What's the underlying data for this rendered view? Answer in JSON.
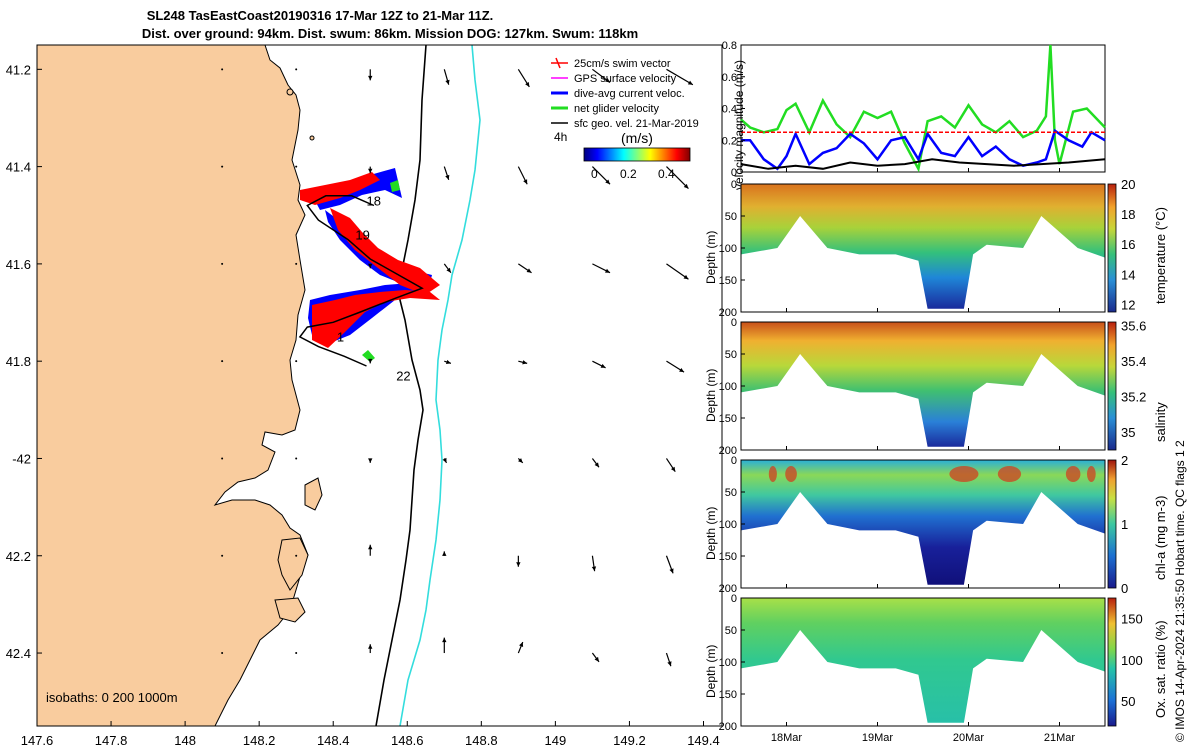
{
  "header": {
    "title_line1": "SL248 TasEastCoast20190316 17-Mar 12Z to 21-Mar 11Z.",
    "title_line2": "Dist. over ground: 94km. Dist. swum: 86km. Mission DOG: 127km. Swum: 118km"
  },
  "credit": "© IMOS 14-Apr-2024 21:35:50 Hobart time. QC flags 1 2",
  "colors": {
    "land": "#f9cc9e",
    "isobath_200": "#000000",
    "isobath_1000": "#33dddd",
    "swim": "#ff0000",
    "gps": "#ff00ff",
    "dive_avg": "#0000ff",
    "net": "#22dd22",
    "geo": "#000000"
  },
  "chart_data": [
    {
      "id": "map",
      "type": "map",
      "xlim": [
        147.6,
        149.45
      ],
      "ylim": [
        -42.55,
        -41.15
      ],
      "xticks": [
        147.6,
        147.8,
        148,
        148.2,
        148.4,
        148.6,
        148.8,
        149,
        149.2,
        149.4
      ],
      "xtick_labels": [
        "147.6",
        "147.8",
        "148",
        "148.2",
        "148.4",
        "148.6",
        "148.8",
        "149",
        "149.2",
        "149.4"
      ],
      "yticks": [
        -41.2,
        -41.4,
        -41.6,
        -41.8,
        -42,
        -42.2,
        -42.4
      ],
      "ytick_labels": [
        "41.2",
        "41.4",
        "41.6",
        "41.8",
        "-42",
        "42.2",
        "42.4"
      ],
      "legend": [
        "25cm/s swim vector",
        "GPS surface velocity",
        "dive-avg current veloc.",
        "net glider velocity",
        "sfc geo. vel. 21-Mar-2019"
      ],
      "legend_time": "4h",
      "colorbar": {
        "label": "(m/s)",
        "ticks": [
          "0",
          "0.2",
          "0.4"
        ],
        "range": [
          -0.05,
          0.5
        ]
      },
      "isobath_label": "isobaths: 0   200  1000m",
      "day_labels": [
        {
          "text": "18",
          "lon": 148.49,
          "lat": -41.48
        },
        {
          "text": "19",
          "lon": 148.46,
          "lat": -41.55
        },
        {
          "text": "1",
          "lon": 148.41,
          "lat": -41.76
        },
        {
          "text": "22",
          "lon": 148.57,
          "lat": -41.84
        }
      ],
      "track": [
        [
          148.51,
          -41.48
        ],
        [
          148.45,
          -41.46
        ],
        [
          148.38,
          -41.46
        ],
        [
          148.33,
          -41.48
        ],
        [
          148.36,
          -41.51
        ],
        [
          148.44,
          -41.55
        ],
        [
          148.5,
          -41.59
        ],
        [
          148.57,
          -41.62
        ],
        [
          148.64,
          -41.65
        ],
        [
          148.57,
          -41.67
        ],
        [
          148.47,
          -41.7
        ],
        [
          148.4,
          -41.72
        ],
        [
          148.33,
          -41.73
        ],
        [
          148.31,
          -41.75
        ],
        [
          148.36,
          -41.77
        ],
        [
          148.43,
          -41.79
        ],
        [
          148.49,
          -41.81
        ]
      ],
      "geo_vectors": {
        "lons": [
          148.1,
          148.3,
          148.5,
          148.7,
          148.9,
          149.1,
          149.3
        ],
        "lats": [
          -41.2,
          -41.4,
          -41.6,
          -41.8,
          -42.0,
          -42.2,
          -42.4
        ],
        "u": [
          [
            0.0,
            0.0,
            0.0,
            0.02,
            0.05,
            0.08,
            0.12
          ],
          [
            0.0,
            0.0,
            0.0,
            0.02,
            0.04,
            0.08,
            0.1
          ],
          [
            0.0,
            0.0,
            0.0,
            0.03,
            0.06,
            0.08,
            0.1
          ],
          [
            0.0,
            0.0,
            0.0,
            0.03,
            0.04,
            0.06,
            0.08
          ],
          [
            0.0,
            0.0,
            0.0,
            0.01,
            0.02,
            0.03,
            0.04
          ],
          [
            0.0,
            0.0,
            0.0,
            0.0,
            0.0,
            0.01,
            0.03
          ],
          [
            0.0,
            0.0,
            0.0,
            0.0,
            0.02,
            0.03,
            0.02
          ]
        ],
        "v": [
          [
            0.0,
            0.0,
            -0.05,
            -0.07,
            -0.08,
            -0.06,
            -0.07
          ],
          [
            0.0,
            0.0,
            -0.03,
            -0.06,
            -0.08,
            -0.08,
            -0.1
          ],
          [
            0.0,
            0.0,
            -0.02,
            -0.04,
            -0.04,
            -0.04,
            -0.07
          ],
          [
            0.0,
            0.0,
            -0.01,
            -0.01,
            -0.01,
            -0.03,
            -0.05
          ],
          [
            0.0,
            0.0,
            -0.02,
            -0.02,
            -0.02,
            -0.04,
            -0.06
          ],
          [
            0.0,
            0.0,
            0.05,
            0.02,
            -0.05,
            -0.07,
            -0.08
          ],
          [
            0.0,
            0.0,
            0.04,
            0.07,
            0.05,
            -0.04,
            -0.06
          ]
        ]
      }
    },
    {
      "id": "velocity",
      "type": "line",
      "ylabel": "velocity magnitude (m/s)",
      "ylim": [
        0,
        0.8
      ],
      "yticks": [
        0,
        0.2,
        0.4,
        0.6,
        0.8
      ],
      "xlim": [
        17.5,
        21.5
      ],
      "series": [
        {
          "name": "net glider velocity",
          "color": "#22dd22",
          "x": [
            17.5,
            17.6,
            17.75,
            17.9,
            18.0,
            18.1,
            18.25,
            18.4,
            18.55,
            18.7,
            18.85,
            19.0,
            19.15,
            19.3,
            19.45,
            19.55,
            19.7,
            19.85,
            20.0,
            20.15,
            20.3,
            20.45,
            20.6,
            20.75,
            20.85,
            20.9,
            20.95,
            21.0,
            21.15,
            21.3,
            21.5
          ],
          "y": [
            0.33,
            0.28,
            0.25,
            0.27,
            0.39,
            0.43,
            0.25,
            0.45,
            0.3,
            0.22,
            0.38,
            0.34,
            0.38,
            0.18,
            0.02,
            0.32,
            0.35,
            0.28,
            0.42,
            0.3,
            0.25,
            0.32,
            0.22,
            0.26,
            0.35,
            0.8,
            0.2,
            0.05,
            0.38,
            0.4,
            0.28
          ]
        },
        {
          "name": "dive-avg current veloc.",
          "color": "#0000ff",
          "x": [
            17.5,
            17.6,
            17.75,
            17.9,
            18.0,
            18.1,
            18.25,
            18.4,
            18.55,
            18.7,
            18.85,
            19.0,
            19.15,
            19.3,
            19.45,
            19.55,
            19.7,
            19.85,
            20.0,
            20.15,
            20.3,
            20.45,
            20.6,
            20.75,
            20.85,
            20.95,
            21.1,
            21.25,
            21.35,
            21.5
          ],
          "y": [
            0.2,
            0.2,
            0.08,
            0.02,
            0.1,
            0.24,
            0.05,
            0.12,
            0.15,
            0.24,
            0.18,
            0.08,
            0.2,
            0.22,
            0.08,
            0.24,
            0.12,
            0.1,
            0.22,
            0.1,
            0.16,
            0.08,
            0.04,
            0.06,
            0.08,
            0.26,
            0.2,
            0.16,
            0.25,
            0.2
          ]
        },
        {
          "name": "sfc velocity",
          "color": "#000000",
          "x": [
            17.5,
            17.8,
            18.1,
            18.4,
            18.7,
            19.0,
            19.3,
            19.6,
            19.9,
            20.2,
            20.5,
            20.8,
            21.1,
            21.5
          ],
          "y": [
            0.05,
            0.02,
            0.04,
            0.02,
            0.06,
            0.04,
            0.05,
            0.08,
            0.06,
            0.05,
            0.04,
            0.05,
            0.06,
            0.08
          ]
        },
        {
          "name": "25cm/s swim vector",
          "color": "#ff0000",
          "x": [
            17.5,
            21.5
          ],
          "y": [
            0.25,
            0.25
          ]
        }
      ]
    },
    {
      "id": "temperature",
      "type": "heatmap",
      "ylabel": "Depth (m)",
      "clabel": "temperature (°C)",
      "ylim": [
        200,
        0
      ],
      "yticks": [
        0,
        50,
        100,
        150,
        200
      ],
      "clim": [
        11.5,
        20
      ],
      "cticks": [
        12,
        14,
        16,
        18,
        20
      ],
      "bottom_depth_profile": {
        "x": [
          17.5,
          17.9,
          18.15,
          18.45,
          18.8,
          19.2,
          19.45,
          19.55,
          19.65,
          19.75,
          19.95,
          20.05,
          20.2,
          20.6,
          20.8,
          21.2,
          21.5
        ],
        "depth": [
          110,
          100,
          50,
          100,
          110,
          110,
          120,
          195,
          195,
          195,
          195,
          110,
          95,
          100,
          50,
          100,
          115
        ]
      },
      "surface_value": 18.5,
      "mid_value": 16,
      "deep_value": 12.5
    },
    {
      "id": "salinity",
      "type": "heatmap",
      "ylabel": "Depth (m)",
      "clabel": "salinity",
      "ylim": [
        200,
        0
      ],
      "yticks": [
        0,
        50,
        100,
        150,
        200
      ],
      "clim": [
        34.9,
        35.62
      ],
      "cticks": [
        35,
        35.2,
        35.4,
        35.6
      ],
      "surface_value": 35.5,
      "mid_value": 35.3,
      "deep_value": 35.05
    },
    {
      "id": "chla",
      "type": "heatmap",
      "ylabel": "Depth (m)",
      "clabel": "chl-a (mg m-3)",
      "ylim": [
        200,
        0
      ],
      "yticks": [
        0,
        50,
        100,
        150,
        200
      ],
      "clim": [
        0,
        2
      ],
      "cticks": [
        0,
        1,
        2
      ],
      "surface_value": 0.8,
      "mid_value": 1.1,
      "deep_value": 0.05
    },
    {
      "id": "oxygen",
      "type": "heatmap",
      "ylabel": "Depth (m)",
      "clabel": "Ox. sat. ratio (%)",
      "ylim": [
        200,
        0
      ],
      "yticks": [
        0,
        50,
        100,
        150,
        200
      ],
      "clim": [
        20,
        175
      ],
      "cticks": [
        50,
        100,
        150
      ],
      "xtick_labels": [
        "18Mar",
        "19Mar",
        "20Mar",
        "21Mar"
      ],
      "xticks": [
        18,
        19,
        20,
        21
      ],
      "surface_value": 110,
      "mid_value": 105,
      "deep_value": 100
    }
  ]
}
